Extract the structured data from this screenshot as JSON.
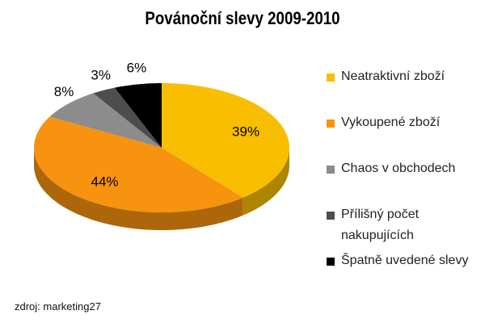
{
  "chart_data": {
    "type": "pie",
    "title": "Povánoční slevy 2009-2010",
    "categories": [
      "Neatraktivní zboží",
      "Vykoupené zboží",
      "Chaos v obchodech",
      "Přílišný počet nakupujících",
      "Špatně uvedené slevy"
    ],
    "values": [
      39,
      44,
      8,
      3,
      6
    ],
    "value_labels": [
      "39%",
      "44%",
      "8%",
      "3%",
      "6%"
    ],
    "colors": [
      "#F9BE00",
      "#F7930E",
      "#8C8C8C",
      "#4D4D4D",
      "#000000"
    ],
    "legend": "right",
    "source": "zdroj: marketing27"
  }
}
